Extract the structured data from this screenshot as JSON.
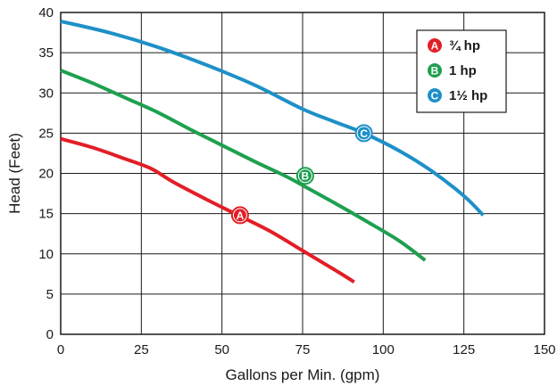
{
  "chart_data": {
    "type": "line",
    "xlabel": "Gallons per Min. (gpm)",
    "ylabel": "Head (Feet)",
    "xlim": [
      0,
      150
    ],
    "ylim": [
      0,
      40
    ],
    "xticks": [
      "0",
      "25",
      "50",
      "75",
      "100",
      "125",
      "150"
    ],
    "yticks": [
      "0",
      "5",
      "10",
      "15",
      "20",
      "25",
      "30",
      "35",
      "40"
    ],
    "grid": true,
    "legend_position": "top-right",
    "series": [
      {
        "name": "¾ hp",
        "marker": "A",
        "color": "#e31e26",
        "x": [
          0,
          10,
          20,
          28,
          35,
          45,
          55,
          65,
          75,
          85,
          91
        ],
        "y": [
          24.3,
          23.2,
          21.8,
          20.6,
          18.9,
          16.8,
          14.8,
          12.8,
          10.4,
          8.0,
          6.5
        ],
        "marker_at": [
          55.6,
          14.8
        ]
      },
      {
        "name": "1 hp",
        "marker": "B",
        "color": "#1ea050",
        "x": [
          0,
          10,
          20,
          30,
          40,
          50,
          60,
          70,
          76,
          85,
          95,
          105,
          113
        ],
        "y": [
          32.8,
          31.2,
          29.4,
          27.6,
          25.5,
          23.5,
          21.5,
          19.6,
          18.3,
          16.3,
          14.0,
          11.6,
          9.2
        ],
        "marker_at": [
          75.8,
          19.7
        ]
      },
      {
        "name": "1½ hp",
        "marker": "C",
        "color": "#1e90c8",
        "x": [
          0,
          15,
          30,
          45,
          60,
          75,
          85,
          94,
          105,
          115,
          125,
          131
        ],
        "y": [
          38.9,
          37.5,
          35.7,
          33.5,
          31.0,
          28.0,
          26.4,
          25.0,
          22.8,
          20.3,
          17.2,
          14.8
        ],
        "marker_at": [
          94,
          25
        ]
      }
    ]
  }
}
